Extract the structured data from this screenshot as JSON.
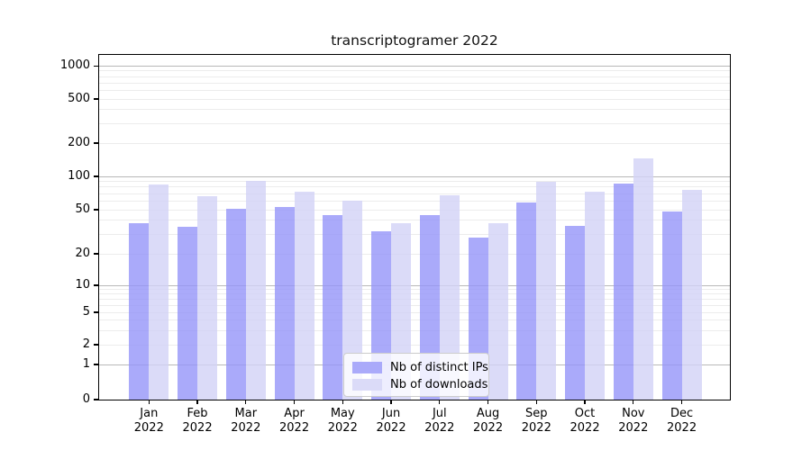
{
  "title": "transcriptogramer 2022",
  "colors": {
    "ips_bar": "rgba(149,149,249,0.8)",
    "downloads_bar": "rgba(210,210,246,0.8)",
    "ips_swatch": "#aaaafa",
    "downloads_swatch": "#dbdbf8",
    "grid_major": "#b8b8b8",
    "grid_minor": "#ececec",
    "spine": "#000000"
  },
  "chart_data": {
    "type": "bar",
    "title": "transcriptogramer 2022",
    "categories": [
      "Jan 2022",
      "Feb 2022",
      "Mar 2022",
      "Apr 2022",
      "May 2022",
      "Jun 2022",
      "Jul 2022",
      "Aug 2022",
      "Sep 2022",
      "Oct 2022",
      "Nov 2022",
      "Dec 2022"
    ],
    "series": [
      {
        "name": "Nb of distinct IPs",
        "values": [
          38,
          35,
          51,
          53,
          45,
          32,
          45,
          28,
          58,
          36,
          86,
          48
        ]
      },
      {
        "name": "Nb of downloads",
        "values": [
          84,
          66,
          91,
          73,
          60,
          38,
          67,
          38,
          89,
          73,
          145,
          75
        ]
      }
    ],
    "xlabel": "",
    "ylabel": "",
    "yscale": "symlog",
    "yticks": [
      0,
      1,
      2,
      5,
      10,
      20,
      50,
      100,
      200,
      500,
      1000
    ],
    "ylim": [
      0,
      1260
    ],
    "grid": true,
    "legend_position": "lower center"
  }
}
